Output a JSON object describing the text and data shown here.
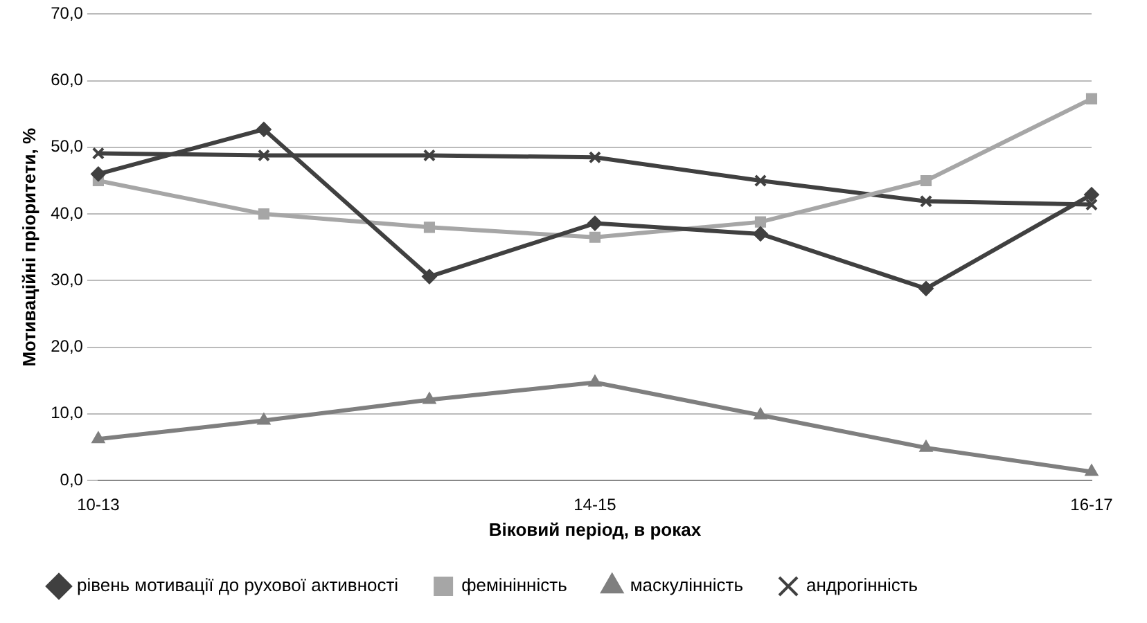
{
  "chart_data": {
    "type": "line",
    "xlabel": "Віковий період, в роках",
    "ylabel": "Мотиваційні пріоритети, %",
    "categories": [
      "10-13",
      null,
      null,
      "14-15",
      null,
      null,
      "16-17"
    ],
    "series": [
      {
        "name": "рівень мотивації до рухової активності",
        "color": "#404040",
        "marker": "diamond",
        "values": [
          46,
          52.7,
          30.6,
          38.6,
          37,
          28.8,
          42.9
        ]
      },
      {
        "name": "фемінінність",
        "color": "#a6a6a6",
        "marker": "square",
        "values": [
          45,
          40,
          38,
          36.5,
          38.8,
          45,
          57.3
        ]
      },
      {
        "name": "маскулінність",
        "color": "#7f7f7f",
        "marker": "triangle",
        "values": [
          6.2,
          9,
          12.1,
          14.7,
          9.8,
          4.9,
          1.3
        ]
      },
      {
        "name": "андрогінність",
        "color": "#404040",
        "marker": "cross",
        "values": [
          49.1,
          48.8,
          48.8,
          48.5,
          45,
          41.9,
          41.4
        ]
      }
    ],
    "ylim": [
      0,
      70
    ],
    "yticks": [
      {
        "value": 0,
        "label": "0,0"
      },
      {
        "value": 10,
        "label": "10,0"
      },
      {
        "value": 20,
        "label": "20,0"
      },
      {
        "value": 30,
        "label": "30,0"
      },
      {
        "value": 40,
        "label": "40,0"
      },
      {
        "value": 50,
        "label": "50,0"
      },
      {
        "value": 60,
        "label": "60,0"
      },
      {
        "value": 70,
        "label": "70,0"
      }
    ],
    "grid": "y",
    "legend": "bottom",
    "line_style": "solid"
  }
}
